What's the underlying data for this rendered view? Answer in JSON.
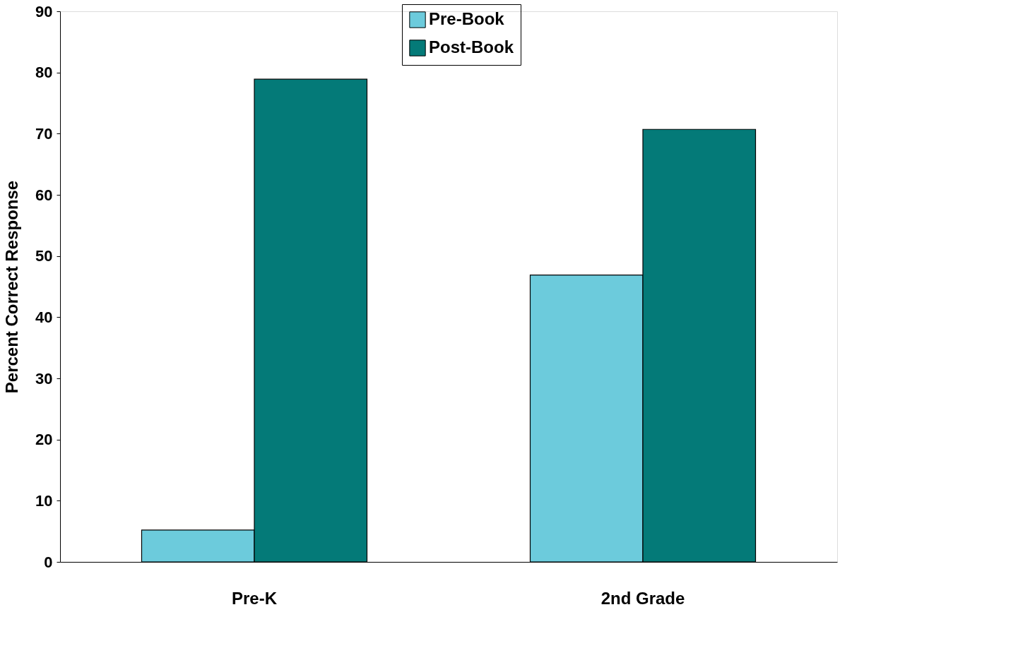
{
  "chart_data": {
    "type": "bar",
    "ylabel": "Percent Correct Response",
    "categories": [
      "Pre-K",
      "2nd Grade"
    ],
    "series": [
      {
        "name": "Pre-Book",
        "color": "#6ccbdc",
        "values": [
          5.2,
          46.9
        ]
      },
      {
        "name": "Post-Book",
        "color": "#047a78",
        "values": [
          78.9,
          70.7
        ]
      }
    ],
    "ylim": [
      0,
      90
    ],
    "yticks": [
      0,
      10,
      20,
      30,
      40,
      50,
      60,
      70,
      80,
      90
    ],
    "grid": false,
    "legend": "top"
  }
}
